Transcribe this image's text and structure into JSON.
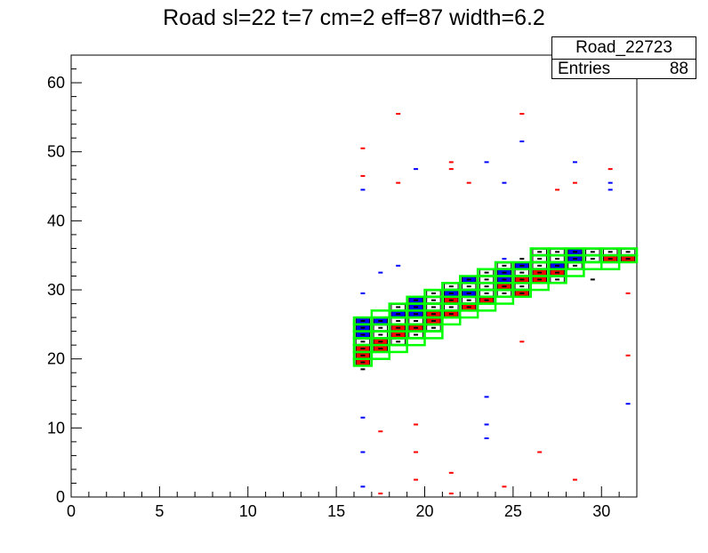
{
  "title": "Road sl=22 t=7 cm=2 eff=87 width=6.2",
  "stats": {
    "name": "Road_22723",
    "entries_label": "Entries",
    "entries_value": "88"
  },
  "colors": {
    "red": "#ff0000",
    "blue": "#0000ff",
    "black": "#000000",
    "green": "#00ff00"
  },
  "chart_data": {
    "type": "heatmap",
    "title": "Road sl=22 t=7 cm=2 eff=87 width=6.2",
    "xlim": [
      0,
      32
    ],
    "ylim": [
      0,
      64
    ],
    "xticks": [
      0,
      5,
      10,
      15,
      20,
      25,
      30
    ],
    "yticks": [
      0,
      10,
      20,
      30,
      40,
      50,
      60
    ],
    "road_boxes": [
      [
        16,
        19
      ],
      [
        16,
        20
      ],
      [
        16,
        21
      ],
      [
        16,
        22
      ],
      [
        16,
        23
      ],
      [
        16,
        24
      ],
      [
        16,
        25
      ],
      [
        17,
        20
      ],
      [
        17,
        21
      ],
      [
        17,
        22
      ],
      [
        17,
        23
      ],
      [
        17,
        24
      ],
      [
        17,
        25
      ],
      [
        17,
        26
      ],
      [
        18,
        21
      ],
      [
        18,
        22
      ],
      [
        18,
        23
      ],
      [
        18,
        24
      ],
      [
        18,
        25
      ],
      [
        18,
        26
      ],
      [
        18,
        27
      ],
      [
        19,
        22
      ],
      [
        19,
        23
      ],
      [
        19,
        24
      ],
      [
        19,
        25
      ],
      [
        19,
        26
      ],
      [
        19,
        27
      ],
      [
        19,
        28
      ],
      [
        20,
        23
      ],
      [
        20,
        24
      ],
      [
        20,
        25
      ],
      [
        20,
        26
      ],
      [
        20,
        27
      ],
      [
        20,
        28
      ],
      [
        20,
        29
      ],
      [
        21,
        25
      ],
      [
        21,
        26
      ],
      [
        21,
        27
      ],
      [
        21,
        28
      ],
      [
        21,
        29
      ],
      [
        21,
        30
      ],
      [
        22,
        26
      ],
      [
        22,
        27
      ],
      [
        22,
        28
      ],
      [
        22,
        29
      ],
      [
        22,
        30
      ],
      [
        22,
        31
      ],
      [
        23,
        27
      ],
      [
        23,
        28
      ],
      [
        23,
        29
      ],
      [
        23,
        30
      ],
      [
        23,
        31
      ],
      [
        23,
        32
      ],
      [
        24,
        28
      ],
      [
        24,
        29
      ],
      [
        24,
        30
      ],
      [
        24,
        31
      ],
      [
        24,
        32
      ],
      [
        24,
        33
      ],
      [
        25,
        29
      ],
      [
        25,
        30
      ],
      [
        25,
        31
      ],
      [
        25,
        32
      ],
      [
        25,
        33
      ],
      [
        26,
        30
      ],
      [
        26,
        31
      ],
      [
        26,
        32
      ],
      [
        26,
        33
      ],
      [
        26,
        34
      ],
      [
        26,
        35
      ],
      [
        27,
        31
      ],
      [
        27,
        32
      ],
      [
        27,
        33
      ],
      [
        27,
        34
      ],
      [
        27,
        35
      ],
      [
        28,
        32
      ],
      [
        28,
        33
      ],
      [
        28,
        34
      ],
      [
        28,
        35
      ],
      [
        29,
        33
      ],
      [
        29,
        34
      ],
      [
        29,
        35
      ],
      [
        30,
        33
      ],
      [
        30,
        34
      ],
      [
        30,
        35
      ],
      [
        31,
        34
      ],
      [
        31,
        35
      ]
    ],
    "cells": [
      {
        "x": 16,
        "y": 19,
        "fill": "red"
      },
      {
        "x": 16,
        "y": 20,
        "fill": "red"
      },
      {
        "x": 16,
        "y": 21,
        "fill": "red"
      },
      {
        "x": 16,
        "y": 22,
        "fill": "white"
      },
      {
        "x": 16,
        "y": 23,
        "fill": "blue"
      },
      {
        "x": 16,
        "y": 24,
        "fill": "blue"
      },
      {
        "x": 16,
        "y": 25,
        "fill": "blue"
      },
      {
        "x": 17,
        "y": 21,
        "fill": "red"
      },
      {
        "x": 17,
        "y": 22,
        "fill": "red"
      },
      {
        "x": 17,
        "y": 23,
        "fill": "white"
      },
      {
        "x": 17,
        "y": 24,
        "fill": "white"
      },
      {
        "x": 17,
        "y": 25,
        "fill": "blue"
      },
      {
        "x": 18,
        "y": 22,
        "fill": "white"
      },
      {
        "x": 18,
        "y": 23,
        "fill": "red"
      },
      {
        "x": 18,
        "y": 24,
        "fill": "red"
      },
      {
        "x": 18,
        "y": 25,
        "fill": "white"
      },
      {
        "x": 18,
        "y": 26,
        "fill": "blue"
      },
      {
        "x": 18,
        "y": 27,
        "fill": "white"
      },
      {
        "x": 19,
        "y": 23,
        "fill": "white"
      },
      {
        "x": 19,
        "y": 24,
        "fill": "red"
      },
      {
        "x": 19,
        "y": 25,
        "fill": "white"
      },
      {
        "x": 19,
        "y": 26,
        "fill": "blue"
      },
      {
        "x": 19,
        "y": 27,
        "fill": "blue"
      },
      {
        "x": 19,
        "y": 28,
        "fill": "blue"
      },
      {
        "x": 20,
        "y": 24,
        "fill": "white"
      },
      {
        "x": 20,
        "y": 25,
        "fill": "red"
      },
      {
        "x": 20,
        "y": 26,
        "fill": "red"
      },
      {
        "x": 20,
        "y": 27,
        "fill": "white"
      },
      {
        "x": 20,
        "y": 28,
        "fill": "white"
      },
      {
        "x": 20,
        "y": 29,
        "fill": "white"
      },
      {
        "x": 21,
        "y": 26,
        "fill": "red"
      },
      {
        "x": 21,
        "y": 27,
        "fill": "white"
      },
      {
        "x": 21,
        "y": 28,
        "fill": "red"
      },
      {
        "x": 21,
        "y": 29,
        "fill": "blue"
      },
      {
        "x": 21,
        "y": 30,
        "fill": "white"
      },
      {
        "x": 22,
        "y": 27,
        "fill": "red"
      },
      {
        "x": 22,
        "y": 28,
        "fill": "white"
      },
      {
        "x": 22,
        "y": 29,
        "fill": "blue"
      },
      {
        "x": 22,
        "y": 30,
        "fill": "white"
      },
      {
        "x": 22,
        "y": 31,
        "fill": "blue"
      },
      {
        "x": 23,
        "y": 28,
        "fill": "red"
      },
      {
        "x": 23,
        "y": 29,
        "fill": "white"
      },
      {
        "x": 23,
        "y": 30,
        "fill": "white"
      },
      {
        "x": 23,
        "y": 31,
        "fill": "white"
      },
      {
        "x": 23,
        "y": 32,
        "fill": "white"
      },
      {
        "x": 24,
        "y": 29,
        "fill": "white"
      },
      {
        "x": 24,
        "y": 30,
        "fill": "red"
      },
      {
        "x": 24,
        "y": 31,
        "fill": "blue"
      },
      {
        "x": 24,
        "y": 32,
        "fill": "blue"
      },
      {
        "x": 24,
        "y": 33,
        "fill": "white"
      },
      {
        "x": 25,
        "y": 29,
        "fill": "red"
      },
      {
        "x": 25,
        "y": 30,
        "fill": "white"
      },
      {
        "x": 25,
        "y": 31,
        "fill": "red"
      },
      {
        "x": 25,
        "y": 32,
        "fill": "white"
      },
      {
        "x": 25,
        "y": 33,
        "fill": "blue"
      },
      {
        "x": 26,
        "y": 31,
        "fill": "red"
      },
      {
        "x": 26,
        "y": 32,
        "fill": "red"
      },
      {
        "x": 26,
        "y": 33,
        "fill": "white"
      },
      {
        "x": 26,
        "y": 34,
        "fill": "white"
      },
      {
        "x": 26,
        "y": 35,
        "fill": "white"
      },
      {
        "x": 27,
        "y": 31,
        "fill": "white"
      },
      {
        "x": 27,
        "y": 32,
        "fill": "red"
      },
      {
        "x": 27,
        "y": 33,
        "fill": "blue"
      },
      {
        "x": 27,
        "y": 34,
        "fill": "white"
      },
      {
        "x": 27,
        "y": 35,
        "fill": "white"
      },
      {
        "x": 28,
        "y": 33,
        "fill": "white"
      },
      {
        "x": 28,
        "y": 34,
        "fill": "blue"
      },
      {
        "x": 28,
        "y": 35,
        "fill": "blue"
      },
      {
        "x": 29,
        "y": 34,
        "fill": "white"
      },
      {
        "x": 29,
        "y": 35,
        "fill": "white"
      },
      {
        "x": 30,
        "y": 34,
        "fill": "red"
      },
      {
        "x": 30,
        "y": 35,
        "fill": "white"
      },
      {
        "x": 31,
        "y": 34,
        "fill": "red"
      },
      {
        "x": 31,
        "y": 35,
        "fill": "white"
      }
    ],
    "dashes": [
      {
        "x": 16,
        "y": 50,
        "c": "red"
      },
      {
        "x": 16,
        "y": 46,
        "c": "red"
      },
      {
        "x": 16,
        "y": 44,
        "c": "blue"
      },
      {
        "x": 16,
        "y": 29,
        "c": "blue"
      },
      {
        "x": 16,
        "y": 18,
        "c": "black"
      },
      {
        "x": 16,
        "y": 11,
        "c": "blue"
      },
      {
        "x": 16,
        "y": 6,
        "c": "blue"
      },
      {
        "x": 16,
        "y": 1,
        "c": "blue"
      },
      {
        "x": 17,
        "y": 32,
        "c": "blue"
      },
      {
        "x": 17,
        "y": 9,
        "c": "red"
      },
      {
        "x": 17,
        "y": 0,
        "c": "red"
      },
      {
        "x": 18,
        "y": 55,
        "c": "red"
      },
      {
        "x": 18,
        "y": 45,
        "c": "red"
      },
      {
        "x": 18,
        "y": 33,
        "c": "blue"
      },
      {
        "x": 19,
        "y": 47,
        "c": "blue"
      },
      {
        "x": 19,
        "y": 10,
        "c": "red"
      },
      {
        "x": 19,
        "y": 6,
        "c": "red"
      },
      {
        "x": 19,
        "y": 2,
        "c": "red"
      },
      {
        "x": 21,
        "y": 48,
        "c": "red"
      },
      {
        "x": 21,
        "y": 47,
        "c": "red"
      },
      {
        "x": 21,
        "y": 3,
        "c": "red"
      },
      {
        "x": 21,
        "y": 0,
        "c": "red"
      },
      {
        "x": 22,
        "y": 45,
        "c": "red"
      },
      {
        "x": 23,
        "y": 48,
        "c": "blue"
      },
      {
        "x": 23,
        "y": 14,
        "c": "blue"
      },
      {
        "x": 23,
        "y": 10,
        "c": "blue"
      },
      {
        "x": 23,
        "y": 8,
        "c": "blue"
      },
      {
        "x": 24,
        "y": 45,
        "c": "blue"
      },
      {
        "x": 24,
        "y": 34,
        "c": "blue"
      },
      {
        "x": 24,
        "y": 1,
        "c": "red"
      },
      {
        "x": 25,
        "y": 55,
        "c": "red"
      },
      {
        "x": 25,
        "y": 51,
        "c": "blue"
      },
      {
        "x": 25,
        "y": 34,
        "c": "black"
      },
      {
        "x": 25,
        "y": 22,
        "c": "red"
      },
      {
        "x": 26,
        "y": 6,
        "c": "red"
      },
      {
        "x": 27,
        "y": 44,
        "c": "red"
      },
      {
        "x": 28,
        "y": 48,
        "c": "blue"
      },
      {
        "x": 28,
        "y": 45,
        "c": "red"
      },
      {
        "x": 28,
        "y": 2,
        "c": "red"
      },
      {
        "x": 29,
        "y": 31,
        "c": "black"
      },
      {
        "x": 30,
        "y": 47,
        "c": "red"
      },
      {
        "x": 30,
        "y": 45,
        "c": "blue"
      },
      {
        "x": 30,
        "y": 44,
        "c": "blue"
      },
      {
        "x": 31,
        "y": 29,
        "c": "red"
      },
      {
        "x": 31,
        "y": 20,
        "c": "red"
      },
      {
        "x": 31,
        "y": 13,
        "c": "blue"
      }
    ]
  }
}
